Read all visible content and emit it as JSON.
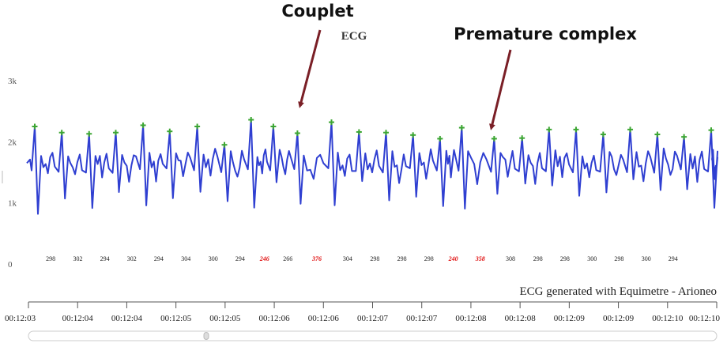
{
  "annotations": {
    "couplet": "Couplet",
    "premature": "Premature complex"
  },
  "footer": {
    "credit": "ECG generated with Equimetre - Arioneo"
  },
  "colors": {
    "trace": "#2f3fd1",
    "peak_marker": "#3ca632",
    "arrow": "#7a1f26",
    "abnormal_interval": "#e01010",
    "axis": "#555555"
  },
  "chart_data": {
    "type": "line",
    "title": "ECG",
    "ylabel": "",
    "xlabel": "",
    "ylim": [
      0,
      3000
    ],
    "y_ticks": [
      "0",
      "1k",
      "2k",
      "3k"
    ],
    "y_tick_values": [
      0,
      1000,
      2000,
      3000
    ],
    "x_tick_labels": [
      "00:12:03",
      "00:12:04",
      "00:12:04",
      "00:12:05",
      "00:12:05",
      "00:12:06",
      "00:12:06",
      "00:12:07",
      "00:12:07",
      "00:12:08",
      "00:12:08",
      "00:12:09",
      "00:12:09",
      "00:12:10",
      "00:12:10"
    ],
    "baseline": 1650,
    "r_peaks": [
      {
        "value": 2250
      },
      {
        "value": 2150
      },
      {
        "value": 2130
      },
      {
        "value": 2150
      },
      {
        "value": 2270
      },
      {
        "value": 2170
      },
      {
        "value": 2250
      },
      {
        "value": 1950
      },
      {
        "value": 2360
      },
      {
        "value": 2250
      },
      {
        "value": 2140
      },
      {
        "value": 2320
      },
      {
        "value": 2160
      },
      {
        "value": 2150
      },
      {
        "value": 2110
      },
      {
        "value": 2050
      },
      {
        "value": 2230
      },
      {
        "value": 2050
      },
      {
        "value": 2060
      },
      {
        "value": 2200
      },
      {
        "value": 2200
      },
      {
        "value": 2120
      },
      {
        "value": 2200
      },
      {
        "value": 2120
      },
      {
        "value": 2080
      },
      {
        "value": 2190
      }
    ],
    "rr_intervals": [
      {
        "label": "298",
        "abnormal": false
      },
      {
        "label": "302",
        "abnormal": false
      },
      {
        "label": "294",
        "abnormal": false
      },
      {
        "label": "302",
        "abnormal": false
      },
      {
        "label": "294",
        "abnormal": false
      },
      {
        "label": "304",
        "abnormal": false
      },
      {
        "label": "300",
        "abnormal": false
      },
      {
        "label": "294",
        "abnormal": false
      },
      {
        "label": "246",
        "abnormal": true
      },
      {
        "label": "266",
        "abnormal": false
      },
      {
        "label": "376",
        "abnormal": true
      },
      {
        "label": "304",
        "abnormal": false
      },
      {
        "label": "298",
        "abnormal": false
      },
      {
        "label": "298",
        "abnormal": false
      },
      {
        "label": "298",
        "abnormal": false
      },
      {
        "label": "240",
        "abnormal": true
      },
      {
        "label": "358",
        "abnormal": true
      },
      {
        "label": "308",
        "abnormal": false
      },
      {
        "label": "298",
        "abnormal": false
      },
      {
        "label": "298",
        "abnormal": false
      },
      {
        "label": "300",
        "abnormal": false
      },
      {
        "label": "298",
        "abnormal": false
      },
      {
        "label": "300",
        "abnormal": false
      },
      {
        "label": "294",
        "abnormal": false
      }
    ]
  }
}
